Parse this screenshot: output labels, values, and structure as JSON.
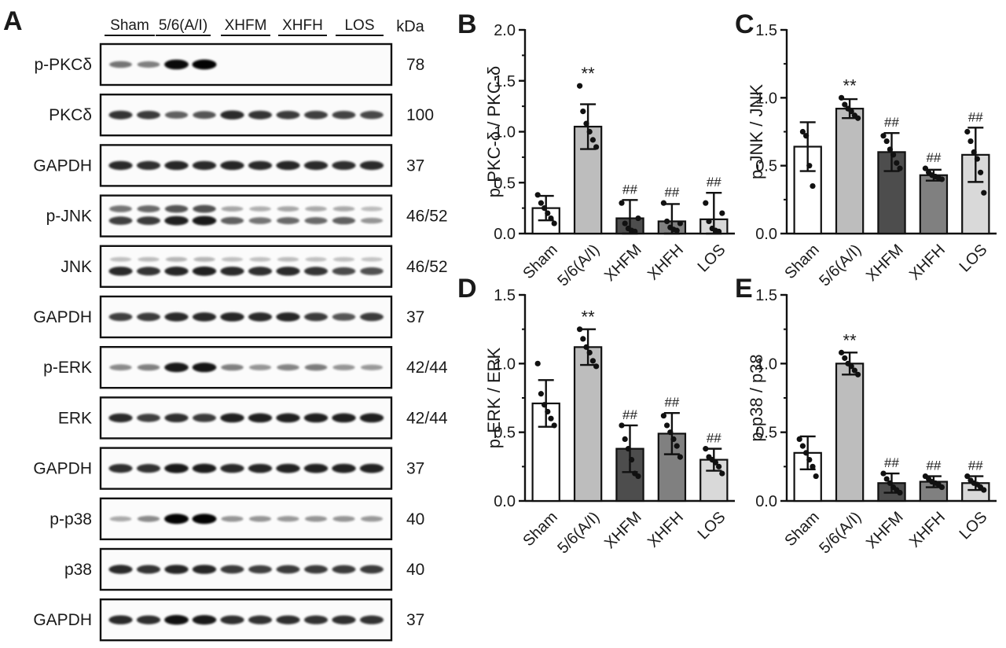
{
  "blot": {
    "panel_letter": "A",
    "groups": [
      "Sham",
      "5/6(A/I)",
      "XHFM",
      "XHFH",
      "LOS"
    ],
    "kda_header": "kDa",
    "rows": [
      {
        "label": "p-PKCδ",
        "kda": "78",
        "bands": [
          [
            0.45,
            0.4,
            0.95,
            0.98,
            0,
            0,
            0,
            0,
            0,
            0
          ]
        ]
      },
      {
        "label": "PKCδ",
        "kda": "100",
        "bands": [
          [
            0.75,
            0.72,
            0.55,
            0.6,
            0.8,
            0.75,
            0.72,
            0.7,
            0.68,
            0.66
          ]
        ]
      },
      {
        "label": "GAPDH",
        "kda": "37",
        "bands": [
          [
            0.8,
            0.78,
            0.82,
            0.8,
            0.82,
            0.8,
            0.82,
            0.8,
            0.78,
            0.8
          ]
        ]
      },
      {
        "label": "p-JNK",
        "kda": "46/52",
        "bands": [
          [
            0.45,
            0.5,
            0.6,
            0.62,
            0.22,
            0.18,
            0.22,
            0.2,
            0.2,
            0.12
          ],
          [
            0.7,
            0.72,
            0.85,
            0.88,
            0.55,
            0.45,
            0.5,
            0.5,
            0.55,
            0.3
          ]
        ]
      },
      {
        "label": "JNK",
        "kda": "46/52",
        "bands": [
          [
            0.1,
            0.12,
            0.15,
            0.15,
            0.1,
            0.1,
            0.12,
            0.1,
            0.1,
            0.08
          ],
          [
            0.8,
            0.75,
            0.82,
            0.85,
            0.8,
            0.78,
            0.8,
            0.75,
            0.65,
            0.62
          ]
        ]
      },
      {
        "label": "GAPDH",
        "kda": "37",
        "bands": [
          [
            0.7,
            0.72,
            0.8,
            0.8,
            0.82,
            0.8,
            0.82,
            0.72,
            0.6,
            0.72
          ]
        ]
      },
      {
        "label": "p-ERK",
        "kda": "42/44",
        "bands": [
          [
            0.35,
            0.4,
            0.88,
            0.9,
            0.4,
            0.3,
            0.38,
            0.42,
            0.3,
            0.28
          ]
        ]
      },
      {
        "label": "ERK",
        "kda": "42/44",
        "bands": [
          [
            0.8,
            0.7,
            0.78,
            0.72,
            0.85,
            0.85,
            0.85,
            0.85,
            0.85,
            0.85
          ]
        ]
      },
      {
        "label": "GAPDH",
        "kda": "37",
        "bands": [
          [
            0.78,
            0.76,
            0.88,
            0.86,
            0.8,
            0.82,
            0.84,
            0.84,
            0.84,
            0.84
          ]
        ]
      },
      {
        "label": "p-p38",
        "kda": "40",
        "bands": [
          [
            0.2,
            0.35,
            0.98,
            0.98,
            0.3,
            0.3,
            0.28,
            0.3,
            0.3,
            0.28
          ]
        ]
      },
      {
        "label": "p38",
        "kda": "40",
        "bands": [
          [
            0.8,
            0.75,
            0.82,
            0.82,
            0.72,
            0.7,
            0.72,
            0.72,
            0.72,
            0.72
          ]
        ]
      },
      {
        "label": "GAPDH",
        "kda": "37",
        "bands": [
          [
            0.8,
            0.78,
            0.92,
            0.88,
            0.78,
            0.76,
            0.78,
            0.76,
            0.78,
            0.76
          ]
        ]
      }
    ]
  },
  "colors": {
    "Sham": "#ffffff",
    "5/6(A/I)": "#bdbdbd",
    "XHFM": "#4d4d4d",
    "XHFH": "#808080",
    "LOS": "#d9d9d9"
  },
  "chart_data": [
    {
      "panel": "B",
      "type": "bar",
      "categories": [
        "Sham",
        "5/6(A/I)",
        "XHFM",
        "XHFH",
        "LOS"
      ],
      "ylabel": "p-PKC-δ / PKC-δ",
      "ylim": [
        0,
        2.0
      ],
      "yticks": [
        "0.0",
        "0.5",
        "1.0",
        "1.5",
        "2.0"
      ],
      "values": [
        0.25,
        1.05,
        0.15,
        0.12,
        0.14
      ],
      "errors": [
        0.12,
        0.22,
        0.18,
        0.17,
        0.26
      ],
      "annotations": [
        "",
        "**",
        "##",
        "##",
        "##"
      ],
      "points": [
        [
          0.38,
          0.3,
          0.25,
          0.2,
          0.15,
          0.1
        ],
        [
          1.45,
          1.2,
          1.08,
          1.0,
          0.92,
          0.85
        ],
        [
          0.3,
          0.1,
          0.05,
          0.03,
          0.02,
          0.15
        ],
        [
          0.3,
          0.12,
          0.06,
          0.04,
          0.03,
          0.1
        ],
        [
          0.3,
          0.12,
          0.05,
          0.03,
          0.02,
          0.2
        ]
      ]
    },
    {
      "panel": "C",
      "type": "bar",
      "categories": [
        "Sham",
        "5/6(A/I)",
        "XHFM",
        "XHFH",
        "LOS"
      ],
      "ylabel": "p-JNK / JNK",
      "ylim": [
        0,
        1.5
      ],
      "yticks": [
        "0.0",
        "0.5",
        "1.0",
        "1.5"
      ],
      "values": [
        0.64,
        0.92,
        0.6,
        0.43,
        0.58
      ],
      "errors": [
        0.18,
        0.07,
        0.14,
        0.04,
        0.2
      ],
      "annotations": [
        "",
        "**",
        "##",
        "##",
        "##"
      ],
      "points": [
        [
          0.75,
          0.72,
          0.5,
          0.35
        ],
        [
          1.0,
          0.95,
          0.92,
          0.9,
          0.87,
          0.85
        ],
        [
          0.72,
          0.68,
          0.62,
          0.58,
          0.52,
          0.48
        ],
        [
          0.48,
          0.45,
          0.43,
          0.42,
          0.41,
          0.4
        ],
        [
          0.75,
          0.68,
          0.6,
          0.55,
          0.45,
          0.3
        ]
      ]
    },
    {
      "panel": "D",
      "type": "bar",
      "categories": [
        "Sham",
        "5/6(A/I)",
        "XHFM",
        "XHFH",
        "LOS"
      ],
      "ylabel": "p-ERK / ERK",
      "ylim": [
        0,
        1.5
      ],
      "yticks": [
        "0.0",
        "0.5",
        "1.0",
        "1.5"
      ],
      "values": [
        0.71,
        1.12,
        0.38,
        0.49,
        0.3
      ],
      "errors": [
        0.17,
        0.13,
        0.17,
        0.15,
        0.08
      ],
      "annotations": [
        "",
        "**",
        "##",
        "##",
        "##"
      ],
      "points": [
        [
          1.0,
          0.78,
          0.7,
          0.65,
          0.6,
          0.55
        ],
        [
          1.25,
          1.18,
          1.12,
          1.08,
          1.02,
          0.98
        ],
        [
          0.55,
          0.45,
          0.38,
          0.3,
          0.2,
          0.18
        ],
        [
          0.62,
          0.55,
          0.5,
          0.45,
          0.4,
          0.32
        ],
        [
          0.38,
          0.32,
          0.3,
          0.28,
          0.25,
          0.2
        ]
      ]
    },
    {
      "panel": "E",
      "type": "bar",
      "categories": [
        "Sham",
        "5/6(A/I)",
        "XHFM",
        "XHFH",
        "LOS"
      ],
      "ylabel": "p-p38 / p38",
      "ylim": [
        0,
        1.5
      ],
      "yticks": [
        "0.0",
        "0.5",
        "1.0",
        "1.5"
      ],
      "values": [
        0.35,
        1.0,
        0.13,
        0.14,
        0.13
      ],
      "errors": [
        0.12,
        0.08,
        0.07,
        0.04,
        0.05
      ],
      "annotations": [
        "",
        "**",
        "##",
        "##",
        "##"
      ],
      "points": [
        [
          0.45,
          0.4,
          0.35,
          0.3,
          0.25,
          0.18
        ],
        [
          1.08,
          1.04,
          1.0,
          0.98,
          0.95,
          0.92
        ],
        [
          0.2,
          0.16,
          0.13,
          0.1,
          0.08,
          0.06
        ],
        [
          0.18,
          0.16,
          0.14,
          0.13,
          0.12,
          0.1
        ],
        [
          0.18,
          0.15,
          0.13,
          0.12,
          0.1,
          0.08
        ]
      ]
    }
  ]
}
